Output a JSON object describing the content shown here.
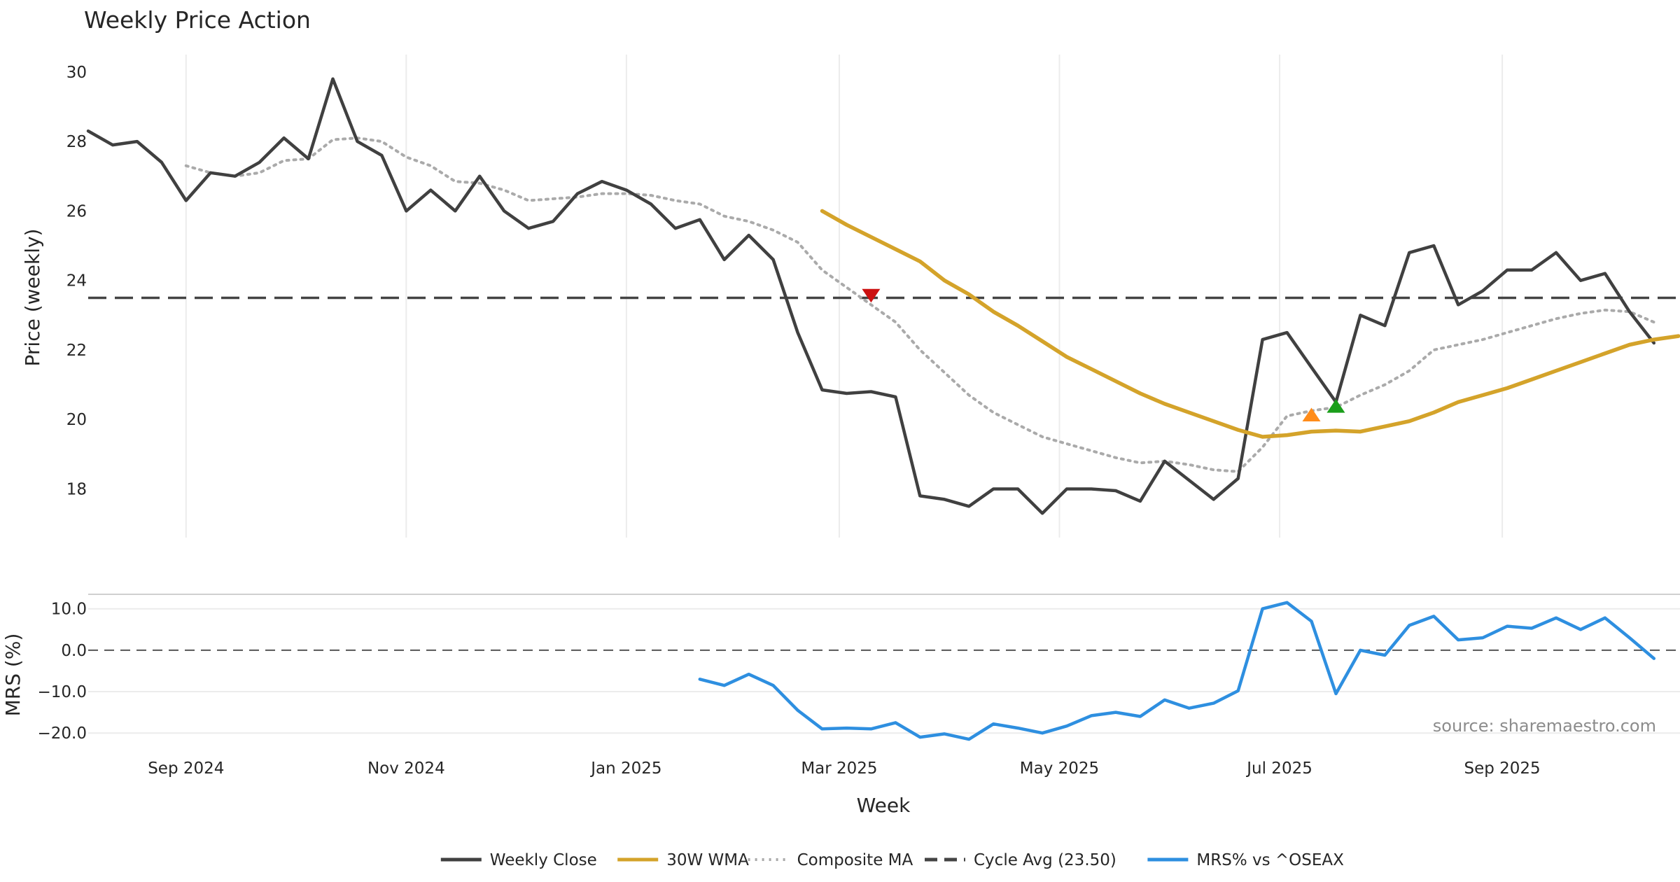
{
  "chart_data": {
    "type": "line",
    "title": "Weekly Price Action",
    "xlabel": "Week",
    "source": "source: sharemaestro.com",
    "x_ticks": [
      {
        "label": "Sep 2024",
        "week": 4
      },
      {
        "label": "Nov 2024",
        "week": 13
      },
      {
        "label": "Jan 2025",
        "week": 22
      },
      {
        "label": "Mar 2025",
        "week": 30.7
      },
      {
        "label": "May 2025",
        "week": 39.7
      },
      {
        "label": "Jul 2025",
        "week": 48.7
      },
      {
        "label": "Sep 2025",
        "week": 57.8
      }
    ],
    "price_panel": {
      "ylabel": "Price (weekly)",
      "ylim": [
        16.6,
        30.5
      ],
      "yticks": [
        18,
        20,
        22,
        24,
        26,
        28,
        30
      ],
      "series": [
        {
          "name": "Weekly Close",
          "color": "#404040",
          "style": "solid",
          "width": 4.5,
          "start_week": 0,
          "values": [
            28.3,
            27.9,
            28.0,
            27.4,
            26.3,
            27.1,
            27.0,
            27.4,
            28.1,
            27.5,
            29.8,
            28.0,
            27.6,
            26.0,
            26.6,
            26.0,
            27.0,
            26.0,
            25.5,
            25.7,
            26.5,
            26.85,
            26.6,
            26.2,
            25.5,
            25.75,
            24.6,
            25.3,
            24.6,
            22.5,
            20.85,
            20.75,
            20.8,
            20.65,
            17.8,
            17.7,
            17.5,
            18.0,
            18.0,
            17.3,
            18.0,
            18.0,
            17.95,
            17.65,
            18.8,
            18.25,
            17.7,
            18.3,
            22.3,
            22.5,
            21.5,
            20.5,
            23.0,
            22.7,
            24.8,
            25.0,
            23.3,
            23.7,
            24.3,
            24.3,
            24.8,
            24.0,
            24.2,
            23.1,
            22.2
          ]
        },
        {
          "name": "30W WMA",
          "color": "#d4a32a",
          "style": "solid",
          "width": 5.5,
          "start_week": 30,
          "values": [
            26.0,
            25.6,
            25.25,
            24.9,
            24.55,
            24.0,
            23.6,
            23.1,
            22.7,
            22.25,
            21.8,
            21.45,
            21.1,
            20.75,
            20.45,
            20.2,
            19.95,
            19.7,
            19.5,
            19.55,
            19.65,
            19.68,
            19.65,
            19.8,
            19.95,
            20.2,
            20.5,
            20.7,
            20.9,
            21.15,
            21.4,
            21.65,
            21.9,
            22.15,
            22.3,
            22.4
          ]
        },
        {
          "name": "Composite MA",
          "color": "#aaaaaa",
          "style": "dotted",
          "width": 4,
          "start_week": 4,
          "values": [
            27.3,
            27.1,
            27.0,
            27.1,
            27.45,
            27.5,
            28.05,
            28.1,
            28.0,
            27.55,
            27.3,
            26.85,
            26.8,
            26.6,
            26.3,
            26.35,
            26.4,
            26.5,
            26.5,
            26.45,
            26.3,
            26.2,
            25.85,
            25.7,
            25.45,
            25.1,
            24.3,
            23.8,
            23.3,
            22.8,
            22.0,
            21.35,
            20.7,
            20.2,
            19.85,
            19.5,
            19.3,
            19.1,
            18.9,
            18.75,
            18.8,
            18.7,
            18.55,
            18.5,
            19.2,
            20.1,
            20.25,
            20.35,
            20.7,
            21.0,
            21.4,
            22.0,
            22.15,
            22.3,
            22.5,
            22.7,
            22.9,
            23.05,
            23.15,
            23.1,
            22.8
          ]
        }
      ],
      "reference_line": {
        "name": "Cycle Avg (23.50)",
        "value": 23.5,
        "color": "#444444"
      },
      "markers": [
        {
          "name": "sell-signal",
          "shape": "triangle-down",
          "week": 32,
          "value": 23.6,
          "color": "#cc1111"
        },
        {
          "name": "buy-signal-orange",
          "shape": "triangle-up",
          "week": 50,
          "value": 20.1,
          "color": "#ff8c1a"
        },
        {
          "name": "buy-signal-green",
          "shape": "triangle-up",
          "week": 51,
          "value": 20.35,
          "color": "#1a9e1a"
        }
      ]
    },
    "mrs_panel": {
      "ylabel": "MRS (%)",
      "ylim": [
        -22.5,
        13.5
      ],
      "yticks": [
        10,
        0,
        -10,
        -20
      ],
      "ytick_labels": [
        "10.0",
        "0.0",
        "−10.0",
        "−20.0"
      ],
      "zero_line": 0,
      "series": [
        {
          "name": "MRS% vs ^OSEAX",
          "color": "#2e8fe0",
          "style": "solid",
          "width": 4.5,
          "start_week": 25,
          "values": [
            -7.0,
            -8.5,
            -5.8,
            -8.5,
            -14.5,
            -19.0,
            -18.8,
            -19.0,
            -17.5,
            -21.0,
            -20.2,
            -21.5,
            -17.8,
            -18.8,
            -20.0,
            -18.3,
            -15.8,
            -15.0,
            -16.0,
            -12.0,
            -14.0,
            -12.8,
            -9.8,
            10.0,
            11.5,
            7.0,
            -10.5,
            0.0,
            -1.2,
            6.0,
            8.2,
            2.5,
            3.0,
            5.8,
            5.3,
            7.8,
            5.0,
            7.8,
            3.0,
            -2.0
          ]
        }
      ]
    },
    "legend": {
      "position": "bottom",
      "entries": [
        {
          "label": "Weekly Close",
          "color": "#404040",
          "style": "solid"
        },
        {
          "label": "30W WMA",
          "color": "#d4a32a",
          "style": "solid"
        },
        {
          "label": "Composite MA",
          "color": "#aaaaaa",
          "style": "dotted"
        },
        {
          "label": "Cycle Avg (23.50)",
          "color": "#444444",
          "style": "dashed"
        },
        {
          "label": "MRS% vs ^OSEAX",
          "color": "#2e8fe0",
          "style": "solid"
        }
      ]
    }
  }
}
